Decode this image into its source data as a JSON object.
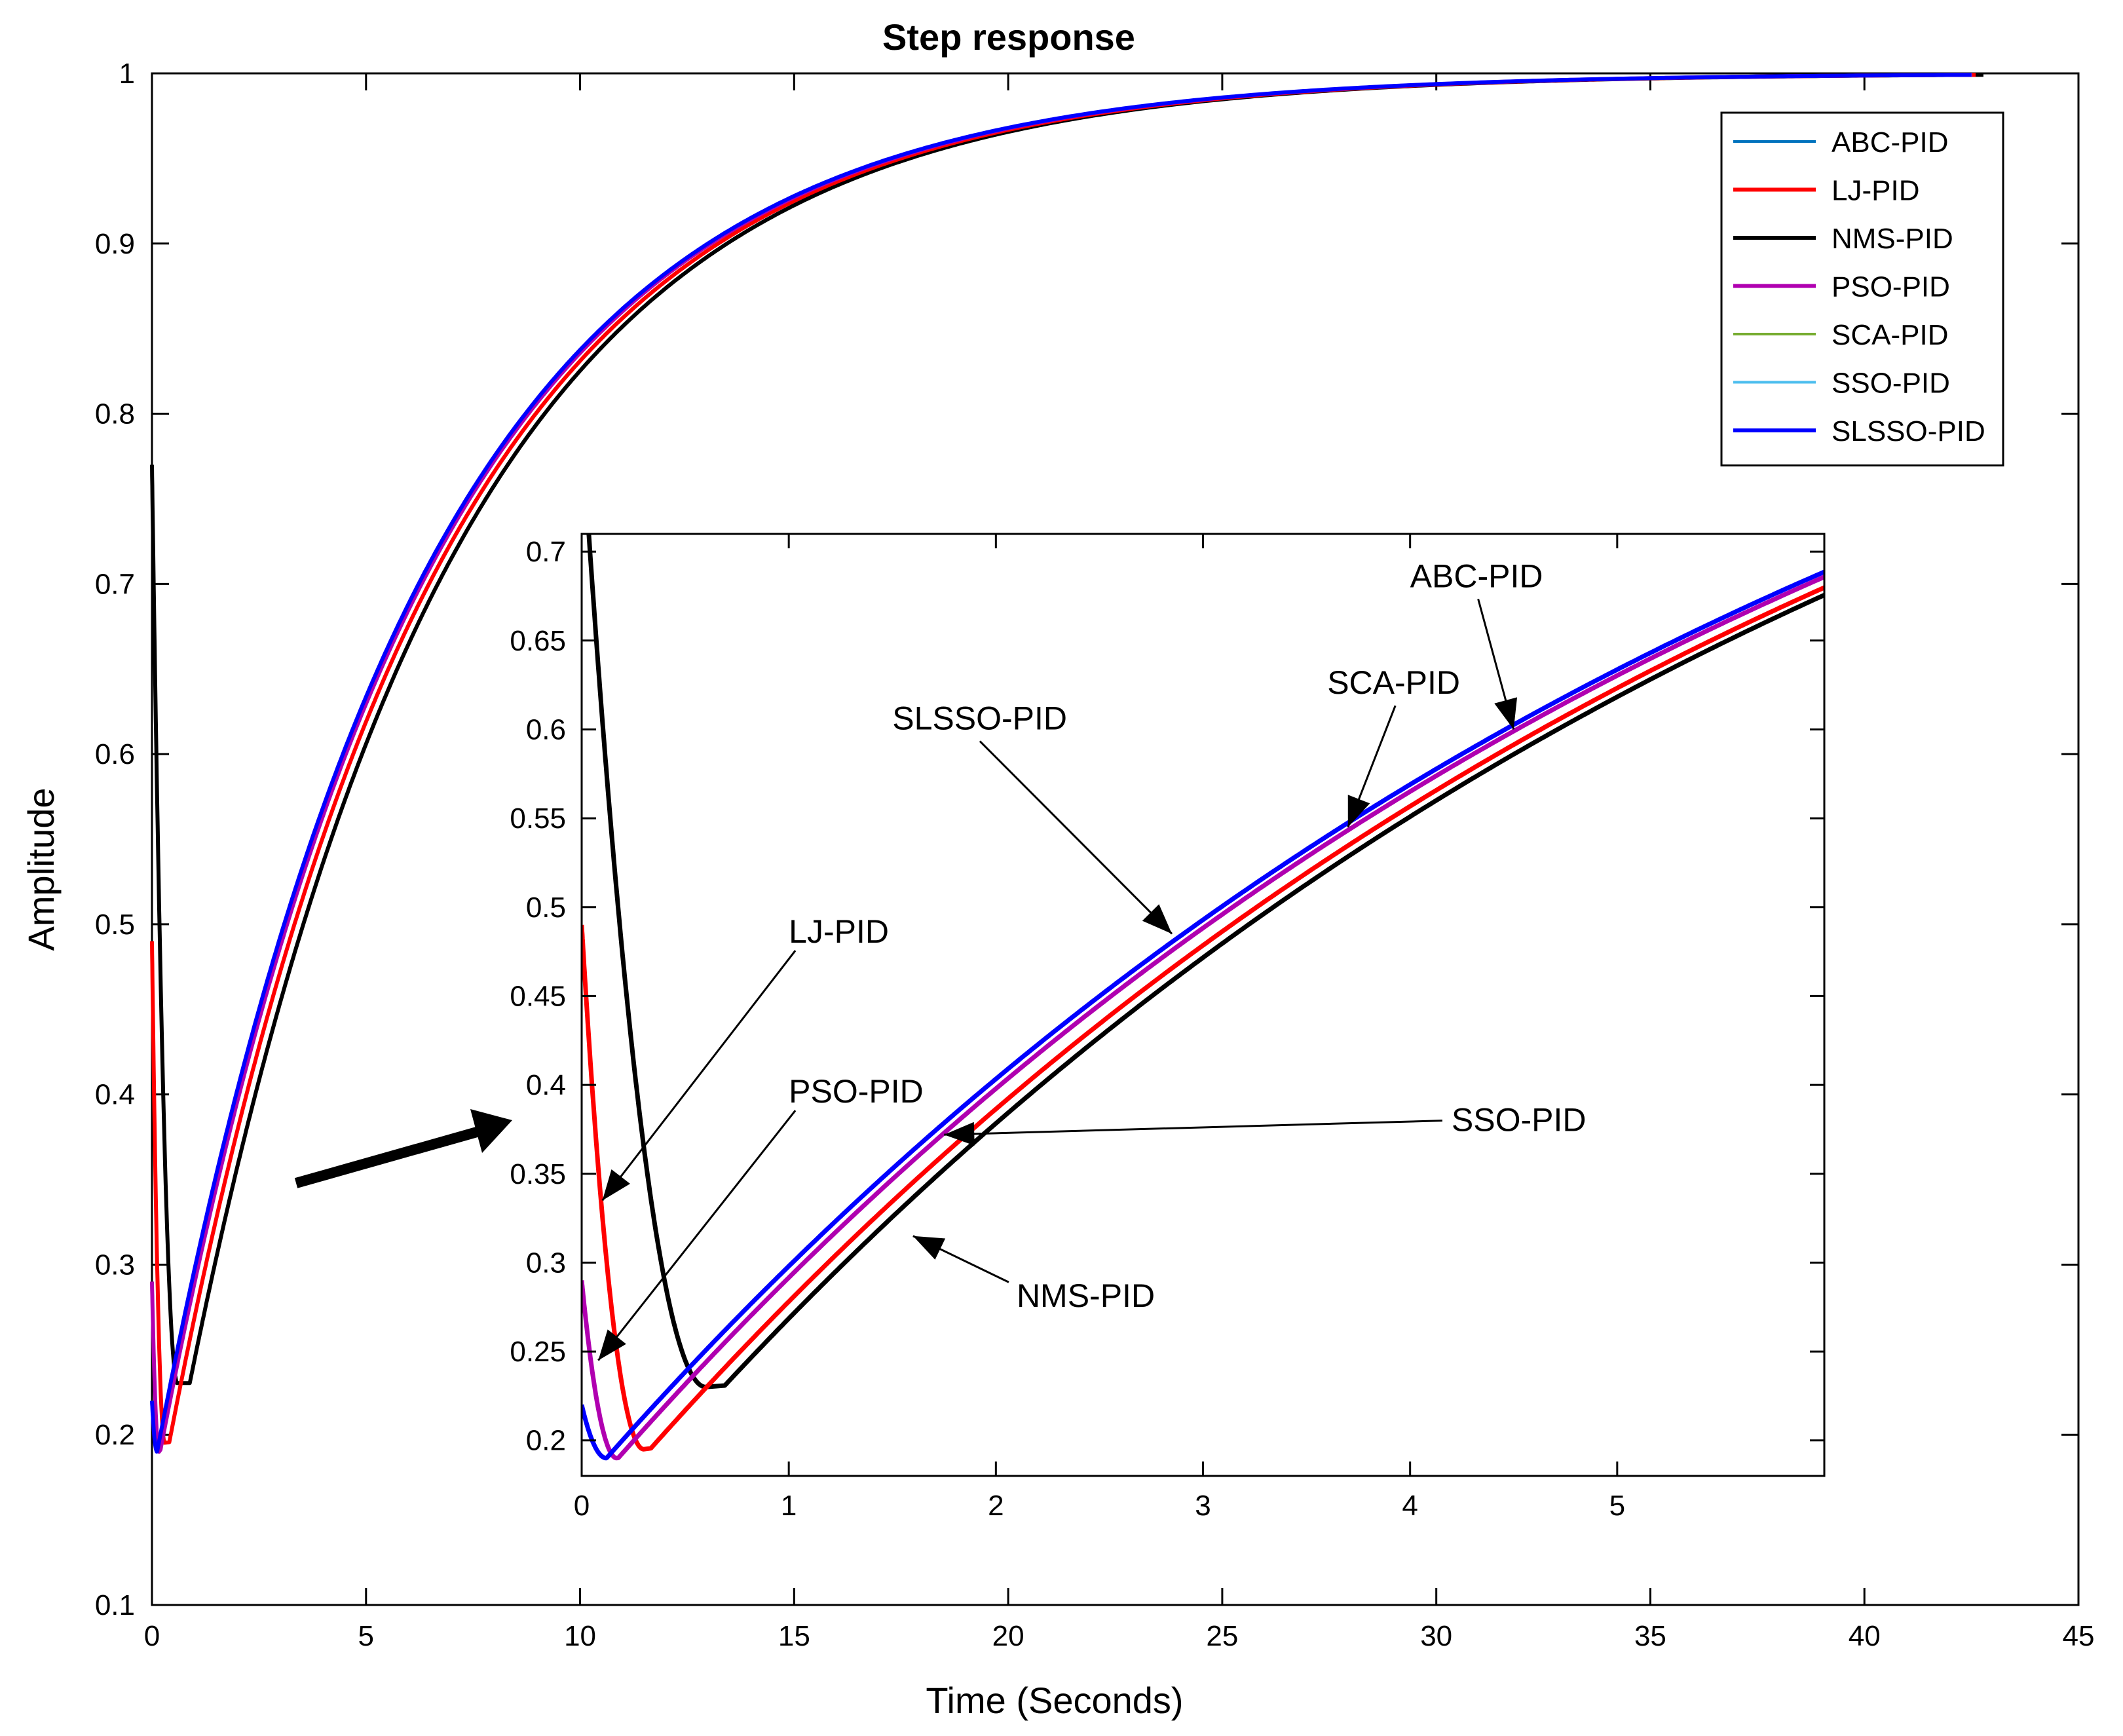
{
  "chart_data": {
    "type": "line",
    "title": "Step response",
    "xlabel": "Time (Seconds)",
    "ylabel": "Amplitude",
    "xlim": [
      0,
      45
    ],
    "ylim": [
      0.1,
      1
    ],
    "xticks": [
      "0",
      "5",
      "10",
      "15",
      "20",
      "25",
      "30",
      "35",
      "40",
      "45"
    ],
    "yticks": [
      "0.1",
      "0.2",
      "0.3",
      "0.4",
      "0.5",
      "0.6",
      "0.7",
      "0.8",
      "0.9",
      "1"
    ],
    "legend_position": "top-right",
    "series": [
      {
        "name": "ABC-PID",
        "color": "#0072BD",
        "y0": 0.22,
        "ymin": 0.19,
        "tmin": 0.12,
        "tau": 6.15,
        "shift": 0.0
      },
      {
        "name": "LJ-PID",
        "color": "#FF0000",
        "y0": 0.49,
        "ymin": 0.195,
        "tmin": 0.3,
        "tau": 6.15,
        "shift": 0.1
      },
      {
        "name": "NMS-PID",
        "color": "#000000",
        "y0": 0.77,
        "ymin": 0.23,
        "tmin": 0.6,
        "tau": 6.15,
        "shift": 0.28
      },
      {
        "name": "PSO-PID",
        "color": "#B000B0",
        "y0": 0.29,
        "ymin": 0.19,
        "tmin": 0.17,
        "tau": 6.15,
        "shift": 0.02
      },
      {
        "name": "SCA-PID",
        "color": "#77AC30",
        "y0": 0.22,
        "ymin": 0.19,
        "tmin": 0.12,
        "tau": 6.15,
        "shift": 0.0
      },
      {
        "name": "SSO-PID",
        "color": "#4DBEEE",
        "y0": 0.22,
        "ymin": 0.19,
        "tmin": 0.12,
        "tau": 6.15,
        "shift": 0.0
      },
      {
        "name": "SLSSO-PID",
        "color": "#0000FF",
        "y0": 0.22,
        "ymin": 0.19,
        "tmin": 0.12,
        "tau": 6.15,
        "shift": 0.0
      }
    ],
    "inset": {
      "xlim": [
        0,
        6
      ],
      "ylim": [
        0.18,
        0.71
      ],
      "xticks": [
        "0",
        "1",
        "2",
        "3",
        "4",
        "5"
      ],
      "yticks": [
        "0.2",
        "0.25",
        "0.3",
        "0.35",
        "0.4",
        "0.45",
        "0.5",
        "0.55",
        "0.6",
        "0.65",
        "0.7"
      ],
      "annotations": [
        {
          "label": "ABC-PID",
          "text_x": 4.0,
          "text_y": 0.68,
          "arrow_x": 4.5,
          "arrow_y": 0.6
        },
        {
          "label": "SCA-PID",
          "text_x": 3.6,
          "text_y": 0.62,
          "arrow_x": 3.7,
          "arrow_y": 0.545
        },
        {
          "label": "SLSSO-PID",
          "text_x": 1.5,
          "text_y": 0.6,
          "arrow_x": 2.85,
          "arrow_y": 0.485
        },
        {
          "label": "LJ-PID",
          "text_x": 1.0,
          "text_y": 0.48,
          "arrow_x": 0.1,
          "arrow_y": 0.335
        },
        {
          "label": "PSO-PID",
          "text_x": 1.0,
          "text_y": 0.39,
          "arrow_x": 0.08,
          "arrow_y": 0.245
        },
        {
          "label": "SSO-PID",
          "text_x": 4.2,
          "text_y": 0.374,
          "arrow_x": 1.75,
          "arrow_y": 0.372
        },
        {
          "label": "NMS-PID",
          "text_x": 2.1,
          "text_y": 0.275,
          "arrow_x": 1.6,
          "arrow_y": 0.315
        }
      ]
    }
  }
}
